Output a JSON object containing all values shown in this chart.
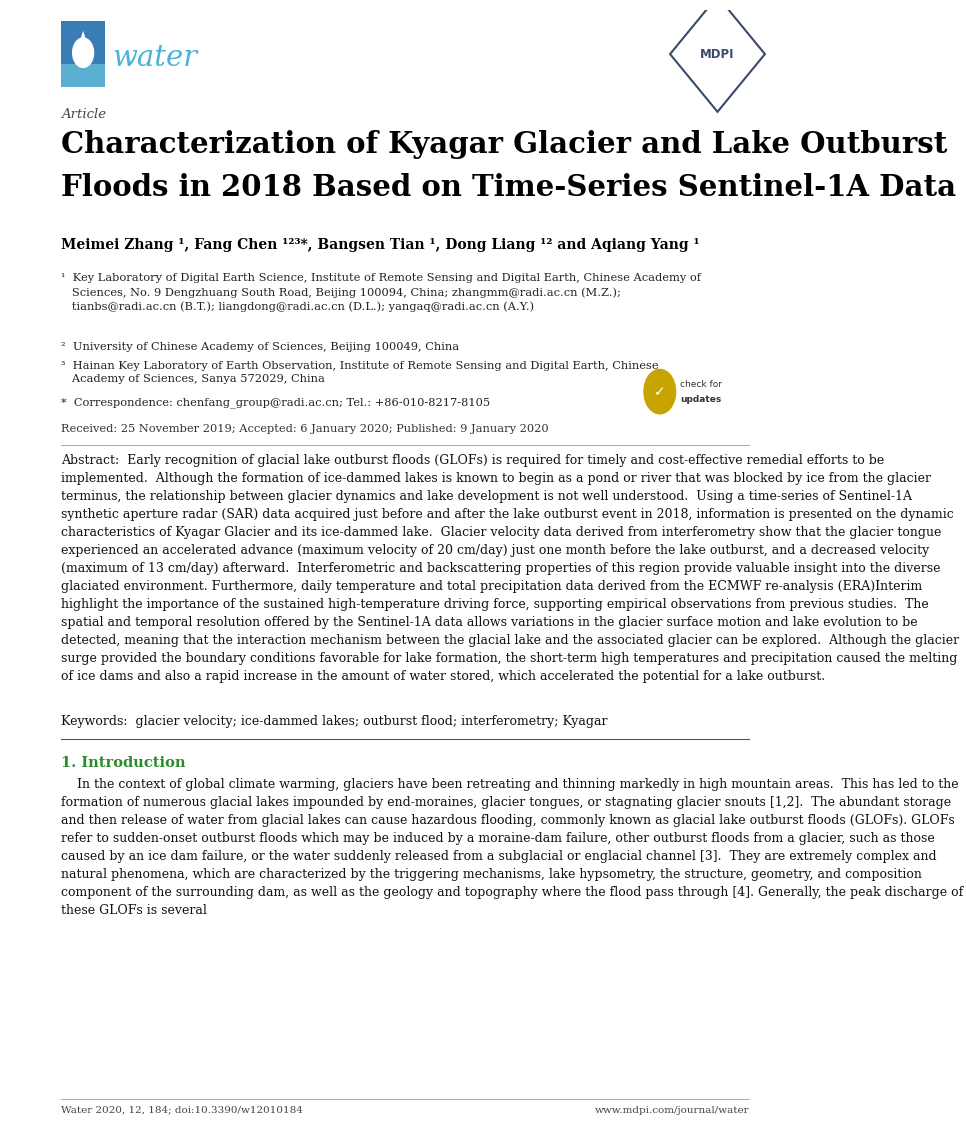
{
  "bg_color": "#ffffff",
  "page_width": 10.2,
  "page_height": 14.42,
  "article_label": "Article",
  "title_line1": "Characterization of Kyagar Glacier and Lake Outburst",
  "title_line2": "Floods in 2018 Based on Time-Series Sentinel-1A Data",
  "authors_line": "Meimei Zhang ¹, Fang Chen ¹²³*, Bangsen Tian ¹, Dong Liang ¹² and Aqiang Yang ¹",
  "aff1": "¹  Key Laboratory of Digital Earth Science, Institute of Remote Sensing and Digital Earth, Chinese Academy of\n   Sciences, No. 9 Dengzhuang South Road, Beijing 100094, China; zhangmm@radi.ac.cn (M.Z.);\n   tianbs@radi.ac.cn (B.T.); liangdong@radi.ac.cn (D.L.); yangaq@radi.ac.cn (A.Y.)",
  "aff2": "²  University of Chinese Academy of Sciences, Beijing 100049, China",
  "aff3": "³  Hainan Key Laboratory of Earth Observation, Institute of Remote Sensing and Digital Earth, Chinese\n   Academy of Sciences, Sanya 572029, China",
  "aff4": "*  Correspondence: chenfang_group@radi.ac.cn; Tel.: +86-010-8217-8105",
  "received": "Received: 25 November 2019; Accepted: 6 January 2020; Published: 9 January 2020",
  "abstract_text": "Abstract:  Early recognition of glacial lake outburst floods (GLOFs) is required for timely and cost-effective remedial efforts to be implemented.  Although the formation of ice-dammed lakes is known to begin as a pond or river that was blocked by ice from the glacier terminus, the relationship between glacier dynamics and lake development is not well understood.  Using a time-series of Sentinel-1A synthetic aperture radar (SAR) data acquired just before and after the lake outburst event in 2018, information is presented on the dynamic characteristics of Kyagar Glacier and its ice-dammed lake.  Glacier velocity data derived from interferometry show that the glacier tongue experienced an accelerated advance (maximum velocity of 20 cm/day) just one month before the lake outburst, and a decreased velocity (maximum of 13 cm/day) afterward.  Interferometric and backscattering properties of this region provide valuable insight into the diverse glaciated environment. Furthermore, daily temperature and total precipitation data derived from the ECMWF re-analysis (ERA)Interim highlight the importance of the sustained high-temperature driving force, supporting empirical observations from previous studies.  The spatial and temporal resolution offered by the Sentinel-1A data allows variations in the glacier surface motion and lake evolution to be detected, meaning that the interaction mechanism between the glacial lake and the associated glacier can be explored.  Although the glacier surge provided the boundary conditions favorable for lake formation, the short-term high temperatures and precipitation caused the melting of ice dams and also a rapid increase in the amount of water stored, which accelerated the potential for a lake outburst.",
  "keywords_text": "Keywords:  glacier velocity; ice-dammed lakes; outburst flood; interferometry; Kyagar",
  "section1_title": "1. Introduction",
  "section1_text": "    In the context of global climate warming, glaciers have been retreating and thinning markedly in high mountain areas.  This has led to the formation of numerous glacial lakes impounded by end-moraines, glacier tongues, or stagnating glacier snouts [1,2].  The abundant storage and then release of water from glacial lakes can cause hazardous flooding, commonly known as glacial lake outburst floods (GLOFs). GLOFs refer to sudden-onset outburst floods which may be induced by a moraine-dam failure, other outburst floods from a glacier, such as those caused by an ice dam failure, or the water suddenly released from a subglacial or englacial channel [3].  They are extremely complex and natural phenomena, which are characterized by the triggering mechanisms, lake hypsometry, the structure, geometry, and composition component of the surrounding dam, as well as the geology and topography where the flood pass through [4]. Generally, the peak discharge of these GLOFs is several",
  "footer_left": "Water 2020, 12, 184; doi:10.3390/w12010184",
  "footer_right": "www.mdpi.com/journal/water",
  "water_blue": "#3a7db5",
  "water_blue_light": "#5aaed0",
  "water_text_color": "#4ab3d8",
  "mdpi_color": "#3a4a6b",
  "title_color": "#000000",
  "text_color": "#111111",
  "section_title_color": "#2d8a2d",
  "aff_color": "#222222",
  "footer_color": "#444444"
}
